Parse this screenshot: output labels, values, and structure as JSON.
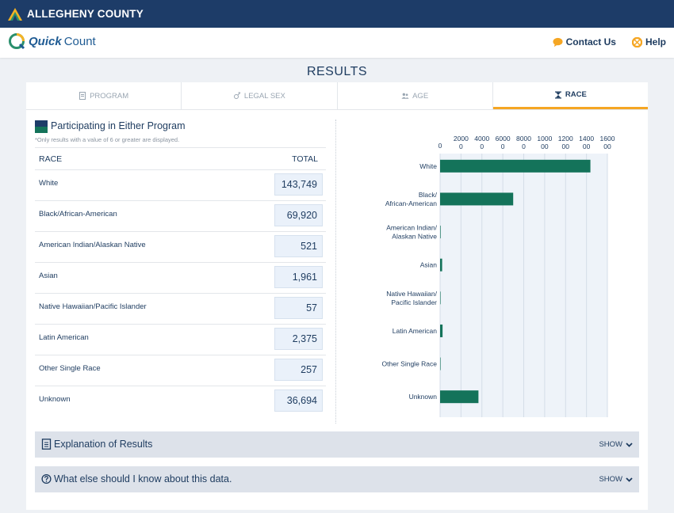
{
  "header": {
    "county_name": "ALLEGHENY COUNTY"
  },
  "brand": {
    "name_bold": "Quick",
    "name_regular": "Count"
  },
  "nav": {
    "contact_label": "Contact Us",
    "help_label": "Help"
  },
  "page_title": "RESULTS",
  "tabs": [
    {
      "label": "PROGRAM",
      "icon": "document-icon",
      "active": false
    },
    {
      "label": "LEGAL SEX",
      "icon": "gender-icon",
      "active": false
    },
    {
      "label": "AGE",
      "icon": "people-icon",
      "active": false
    },
    {
      "label": "RACE",
      "icon": "hourglass-icon",
      "active": true
    }
  ],
  "results": {
    "group_title": "Participating in Either Program",
    "group_color_top": "#1d3c68",
    "group_color_bottom": "#14735a",
    "note": "*Only results with a value of 6 or greater are displayed.",
    "col_race": "RACE",
    "col_total": "TOTAL",
    "rows": [
      {
        "race": "White",
        "total": "143,749"
      },
      {
        "race": "Black/African-American",
        "total": "69,920"
      },
      {
        "race": "American Indian/Alaskan Native",
        "total": "521"
      },
      {
        "race": "Asian",
        "total": "1,961"
      },
      {
        "race": "Native Hawaiian/Pacific Islander",
        "total": "57"
      },
      {
        "race": "Latin American",
        "total": "2,375"
      },
      {
        "race": "Other Single Race",
        "total": "257"
      },
      {
        "race": "Unknown",
        "total": "36,694"
      }
    ]
  },
  "chart_data": {
    "type": "bar",
    "orientation": "horizontal",
    "x_ticks": [
      [
        "0"
      ],
      [
        "2000",
        "0"
      ],
      [
        "4000",
        "0"
      ],
      [
        "6000",
        "0"
      ],
      [
        "8000",
        "0"
      ],
      [
        "1000",
        "00"
      ],
      [
        "1200",
        "00"
      ],
      [
        "1400",
        "00"
      ],
      [
        "1600",
        "00"
      ]
    ],
    "xlim": [
      0,
      160000
    ],
    "categories": [
      [
        "White"
      ],
      [
        "Black/",
        "African-American"
      ],
      [
        "American Indian/",
        "Alaskan Native"
      ],
      [
        "Asian"
      ],
      [
        "Native Hawaiian/",
        "Pacific Islander"
      ],
      [
        "Latin American"
      ],
      [
        "Other Single Race"
      ],
      [
        "Unknown"
      ]
    ],
    "values": [
      143749,
      69920,
      521,
      1961,
      57,
      2375,
      257,
      36694
    ],
    "bar_color": "#14735a",
    "bar_color_dark": "#1d3c68",
    "grid": true
  },
  "accordions": [
    {
      "title": "Explanation of Results",
      "toggle": "SHOW",
      "icon": "document-icon"
    },
    {
      "title": "What else should I know about this data.",
      "toggle": "SHOW",
      "icon": "question-circle-icon"
    }
  ]
}
